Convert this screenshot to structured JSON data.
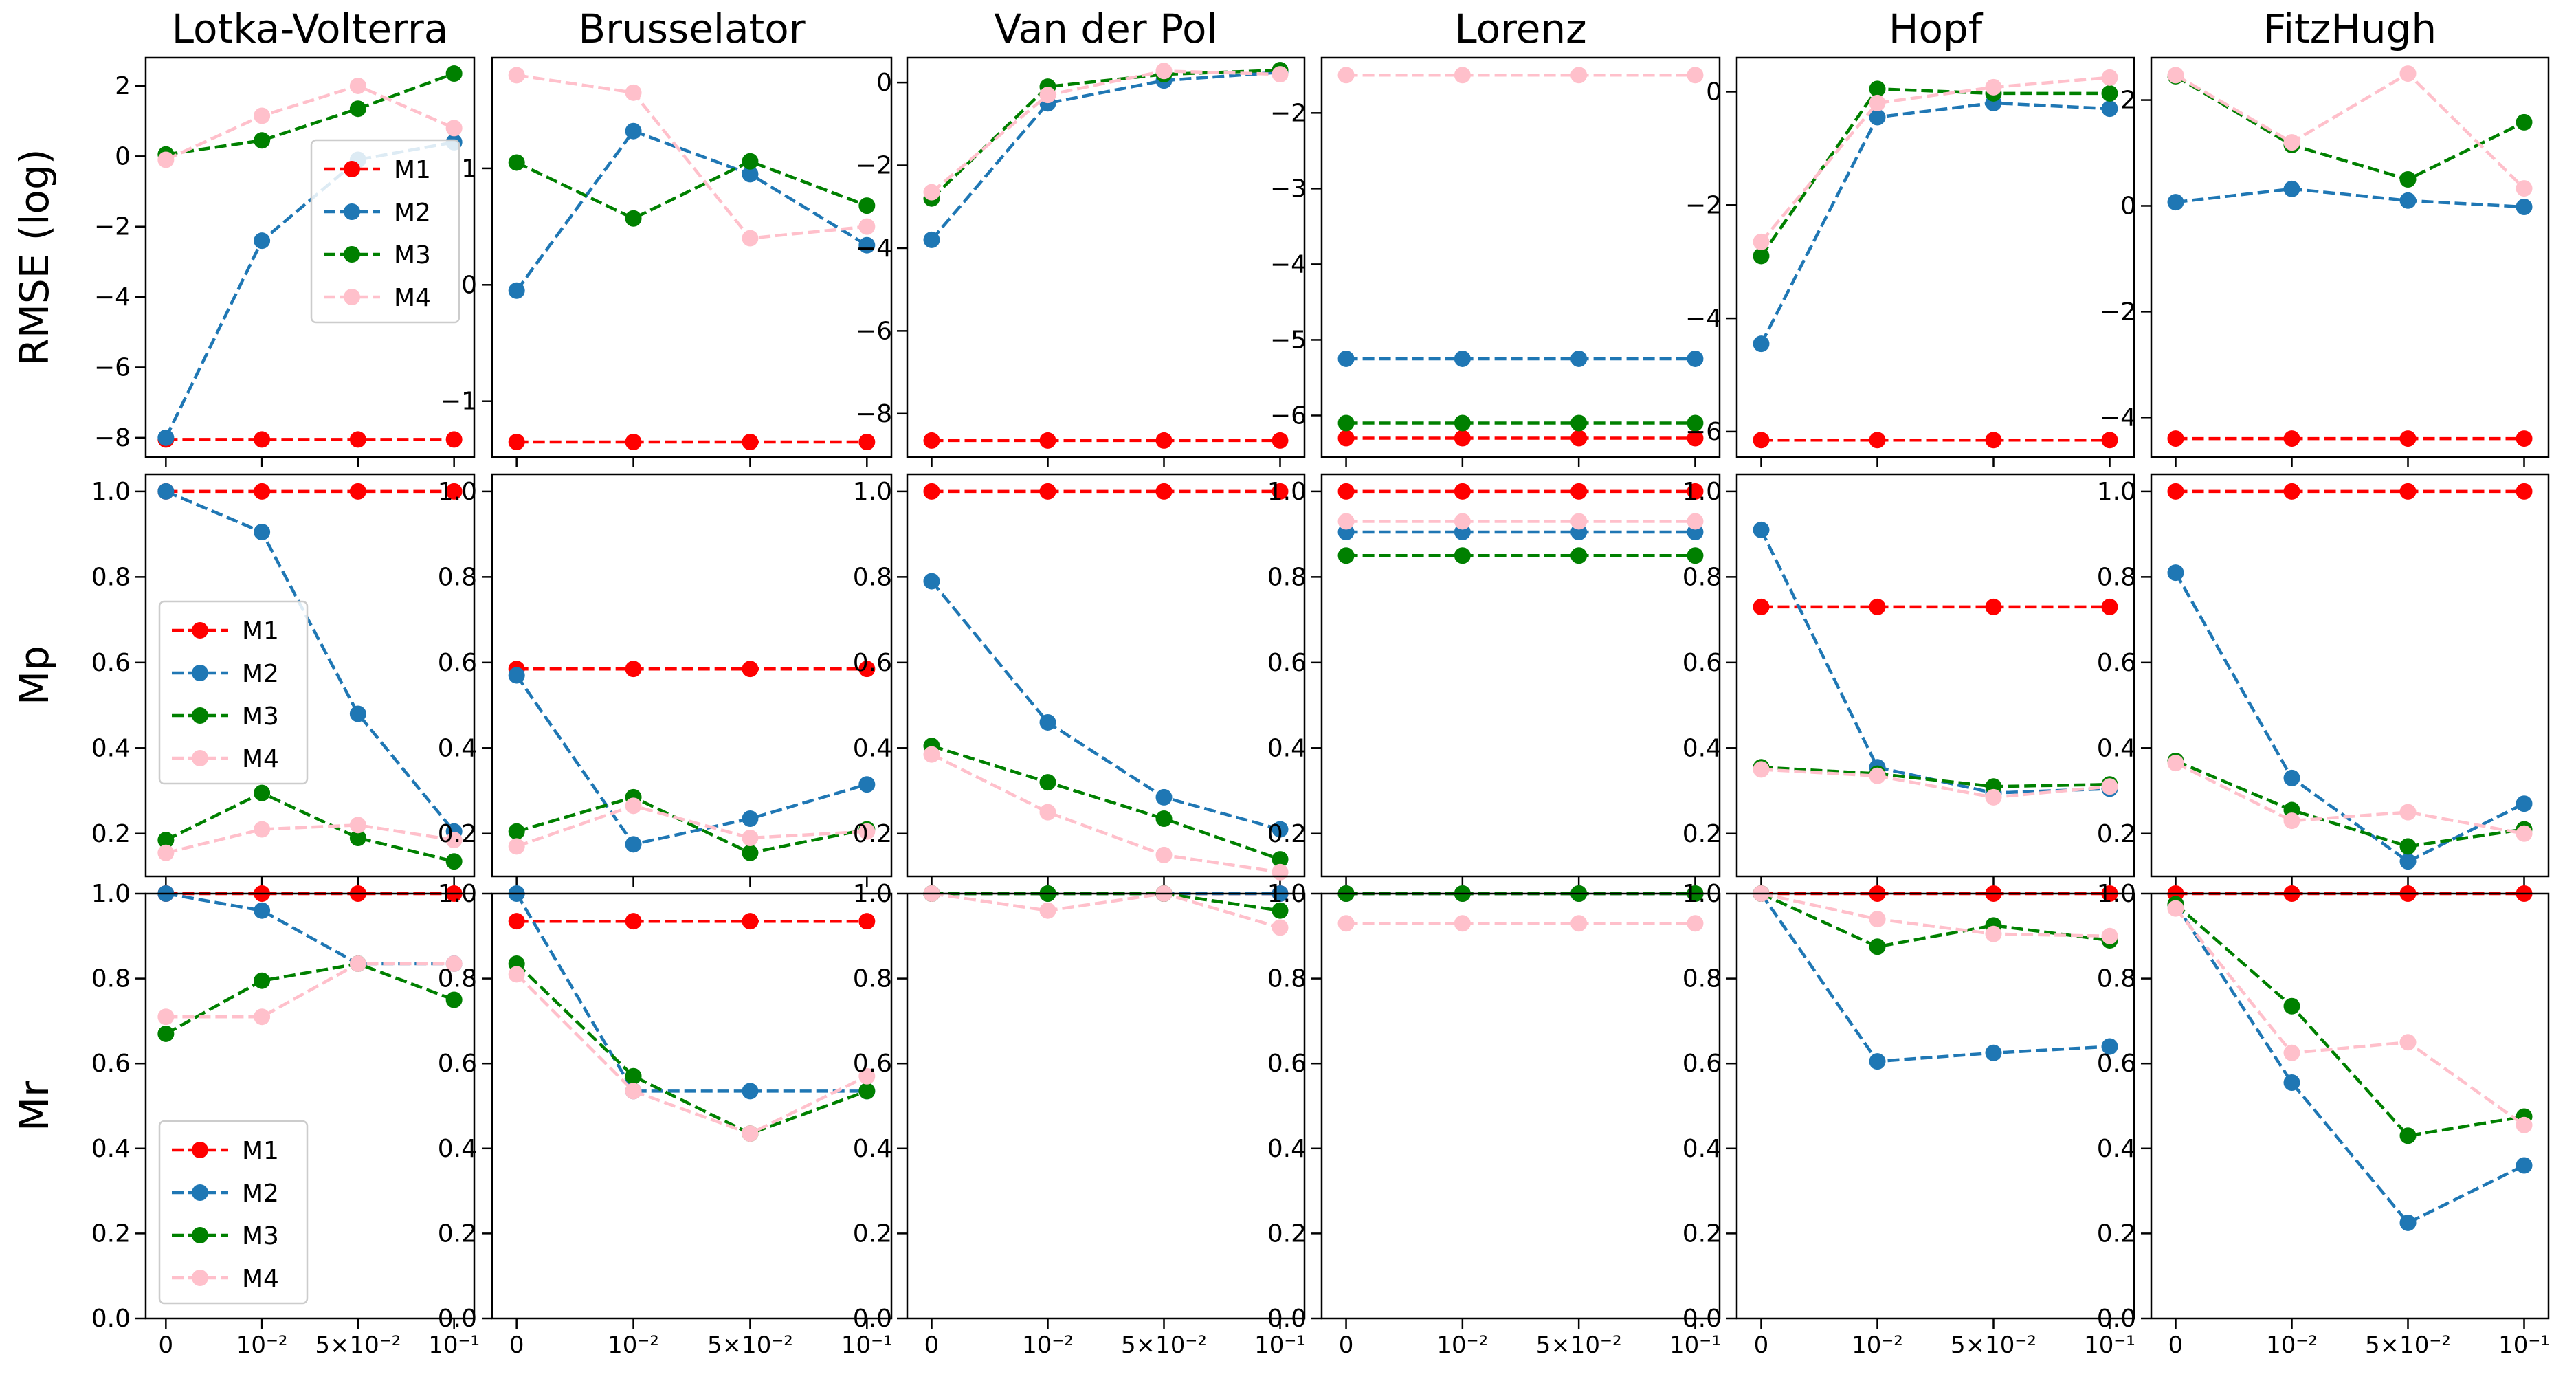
{
  "colors": {
    "M1": "#ff0000",
    "M2": "#1f77b4",
    "M3": "#008000",
    "M4": "#ffc0cb"
  },
  "x_ticks": [
    "0",
    "10⁻²",
    "5×10⁻²",
    "10⁻¹"
  ],
  "row_labels": [
    "RMSE (log)",
    "Mp",
    "Mr"
  ],
  "column_titles": [
    "Lotka-Volterra",
    "Brusselator",
    "Van der Pol",
    "Lorenz",
    "Hopf",
    "FitzHugh"
  ],
  "chart_data": [
    {
      "type": "line",
      "title": "Lotka-Volterra",
      "ylabel": "RMSE (log)",
      "categories": [
        "0",
        "10⁻²",
        "5×10⁻²",
        "10⁻¹"
      ],
      "ylim": [
        -8.55,
        2.8
      ],
      "yticks": [
        -8,
        -6,
        -4,
        -2,
        0,
        2
      ],
      "legend": "center-right",
      "series": [
        {
          "name": "M1",
          "values": [
            -8.05,
            -8.05,
            -8.05,
            -8.05
          ]
        },
        {
          "name": "M2",
          "values": [
            -8.0,
            -2.4,
            -0.1,
            0.4
          ]
        },
        {
          "name": "M3",
          "values": [
            0.05,
            0.45,
            1.35,
            2.35
          ]
        },
        {
          "name": "M4",
          "values": [
            -0.1,
            1.15,
            2.0,
            0.8
          ]
        }
      ]
    },
    {
      "type": "line",
      "title": "Brusselator",
      "ylabel": "",
      "categories": [
        "0",
        "10⁻²",
        "5×10⁻²",
        "10⁻¹"
      ],
      "ylim": [
        -1.48,
        1.95
      ],
      "yticks": [
        -1,
        0,
        1
      ],
      "legend": "none",
      "series": [
        {
          "name": "M1",
          "values": [
            -1.35,
            -1.35,
            -1.35,
            -1.35
          ]
        },
        {
          "name": "M2",
          "values": [
            -0.05,
            1.32,
            0.95,
            0.34
          ]
        },
        {
          "name": "M3",
          "values": [
            1.05,
            0.57,
            1.06,
            0.68
          ]
        },
        {
          "name": "M4",
          "values": [
            1.8,
            1.65,
            0.4,
            0.5
          ]
        }
      ]
    },
    {
      "type": "line",
      "title": "Van der Pol",
      "ylabel": "",
      "categories": [
        "0",
        "10⁻²",
        "5×10⁻²",
        "10⁻¹"
      ],
      "ylim": [
        -9.05,
        0.6
      ],
      "yticks": [
        -8,
        -6,
        -4,
        -2,
        0
      ],
      "legend": "none",
      "series": [
        {
          "name": "M1",
          "values": [
            -8.65,
            -8.65,
            -8.65,
            -8.65
          ]
        },
        {
          "name": "M2",
          "values": [
            -3.8,
            -0.5,
            0.05,
            0.25
          ]
        },
        {
          "name": "M3",
          "values": [
            -2.8,
            -0.1,
            0.2,
            0.3
          ]
        },
        {
          "name": "M4",
          "values": [
            -2.65,
            -0.3,
            0.28,
            0.2
          ]
        }
      ]
    },
    {
      "type": "line",
      "title": "Lorenz",
      "ylabel": "",
      "categories": [
        "0",
        "10⁻²",
        "5×10⁻²",
        "10⁻¹"
      ],
      "ylim": [
        -6.55,
        -1.27
      ],
      "yticks": [
        -6,
        -5,
        -4,
        -3,
        -2
      ],
      "legend": "none",
      "series": [
        {
          "name": "M1",
          "values": [
            -6.3,
            -6.3,
            -6.3,
            -6.3
          ]
        },
        {
          "name": "M2",
          "values": [
            -5.25,
            -5.25,
            -5.25,
            -5.25
          ]
        },
        {
          "name": "M3",
          "values": [
            -6.1,
            -6.1,
            -6.1,
            -6.1
          ]
        },
        {
          "name": "M4",
          "values": [
            -1.5,
            -1.5,
            -1.5,
            -1.5
          ]
        }
      ]
    },
    {
      "type": "line",
      "title": "Hopf",
      "ylabel": "",
      "categories": [
        "0",
        "10⁻²",
        "5×10⁻²",
        "10⁻¹"
      ],
      "ylim": [
        -6.45,
        0.6
      ],
      "yticks": [
        -6,
        -4,
        -2,
        0
      ],
      "legend": "none",
      "series": [
        {
          "name": "M1",
          "values": [
            -6.15,
            -6.15,
            -6.15,
            -6.15
          ]
        },
        {
          "name": "M2",
          "values": [
            -4.45,
            -0.45,
            -0.2,
            -0.3
          ]
        },
        {
          "name": "M3",
          "values": [
            -2.9,
            0.05,
            -0.03,
            -0.03
          ]
        },
        {
          "name": "M4",
          "values": [
            -2.65,
            -0.2,
            0.08,
            0.25
          ]
        }
      ]
    },
    {
      "type": "line",
      "title": "FitzHugh",
      "ylabel": "",
      "categories": [
        "0",
        "10⁻²",
        "5×10⁻²",
        "10⁻¹"
      ],
      "ylim": [
        -4.75,
        2.8
      ],
      "yticks": [
        -4,
        -2,
        0,
        2
      ],
      "legend": "none",
      "series": [
        {
          "name": "M1",
          "values": [
            -4.4,
            -4.4,
            -4.4,
            -4.4
          ]
        },
        {
          "name": "M2",
          "values": [
            0.07,
            0.32,
            0.1,
            -0.02
          ]
        },
        {
          "name": "M3",
          "values": [
            2.45,
            1.15,
            0.5,
            1.58
          ]
        },
        {
          "name": "M4",
          "values": [
            2.47,
            1.2,
            2.5,
            0.33
          ]
        }
      ]
    },
    {
      "type": "line",
      "title": "",
      "ylabel": "Mp",
      "categories": [
        "0",
        "10⁻²",
        "5×10⁻²",
        "10⁻¹"
      ],
      "ylim": [
        0.1,
        1.04
      ],
      "yticks": [
        0.2,
        0.4,
        0.6,
        0.8,
        1.0
      ],
      "legend": "center-left",
      "series": [
        {
          "name": "M1",
          "values": [
            1.0,
            1.0,
            1.0,
            1.0
          ]
        },
        {
          "name": "M2",
          "values": [
            1.0,
            0.905,
            0.48,
            0.205
          ]
        },
        {
          "name": "M3",
          "values": [
            0.185,
            0.295,
            0.19,
            0.135
          ]
        },
        {
          "name": "M4",
          "values": [
            0.155,
            0.21,
            0.22,
            0.185
          ]
        }
      ]
    },
    {
      "type": "line",
      "title": "",
      "ylabel": "",
      "categories": [
        "0",
        "10⁻²",
        "5×10⁻²",
        "10⁻¹"
      ],
      "ylim": [
        0.1,
        1.04
      ],
      "yticks": [
        0.2,
        0.4,
        0.6,
        0.8,
        1.0
      ],
      "legend": "none",
      "series": [
        {
          "name": "M1",
          "values": [
            0.585,
            0.585,
            0.585,
            0.585
          ]
        },
        {
          "name": "M2",
          "values": [
            0.57,
            0.175,
            0.235,
            0.315
          ]
        },
        {
          "name": "M3",
          "values": [
            0.205,
            0.285,
            0.155,
            0.21
          ]
        },
        {
          "name": "M4",
          "values": [
            0.17,
            0.265,
            0.19,
            0.205
          ]
        }
      ]
    },
    {
      "type": "line",
      "title": "",
      "ylabel": "",
      "categories": [
        "0",
        "10⁻²",
        "5×10⁻²",
        "10⁻¹"
      ],
      "ylim": [
        0.1,
        1.04
      ],
      "yticks": [
        0.2,
        0.4,
        0.6,
        0.8,
        1.0
      ],
      "legend": "none",
      "series": [
        {
          "name": "M1",
          "values": [
            1.0,
            1.0,
            1.0,
            1.0
          ]
        },
        {
          "name": "M2",
          "values": [
            0.79,
            0.46,
            0.285,
            0.21
          ]
        },
        {
          "name": "M3",
          "values": [
            0.405,
            0.32,
            0.235,
            0.14
          ]
        },
        {
          "name": "M4",
          "values": [
            0.385,
            0.25,
            0.15,
            0.11
          ]
        }
      ]
    },
    {
      "type": "line",
      "title": "",
      "ylabel": "",
      "categories": [
        "0",
        "10⁻²",
        "5×10⁻²",
        "10⁻¹"
      ],
      "ylim": [
        0.1,
        1.04
      ],
      "yticks": [
        0.2,
        0.4,
        0.6,
        0.8,
        1.0
      ],
      "legend": "none",
      "series": [
        {
          "name": "M1",
          "values": [
            1.0,
            1.0,
            1.0,
            1.0
          ]
        },
        {
          "name": "M2",
          "values": [
            0.905,
            0.905,
            0.905,
            0.905
          ]
        },
        {
          "name": "M3",
          "values": [
            0.85,
            0.85,
            0.85,
            0.85
          ]
        },
        {
          "name": "M4",
          "values": [
            0.93,
            0.93,
            0.93,
            0.93
          ]
        }
      ]
    },
    {
      "type": "line",
      "title": "",
      "ylabel": "",
      "categories": [
        "0",
        "10⁻²",
        "5×10⁻²",
        "10⁻¹"
      ],
      "ylim": [
        0.1,
        1.04
      ],
      "yticks": [
        0.2,
        0.4,
        0.6,
        0.8,
        1.0
      ],
      "legend": "none",
      "series": [
        {
          "name": "M1",
          "values": [
            0.73,
            0.73,
            0.73,
            0.73
          ]
        },
        {
          "name": "M2",
          "values": [
            0.91,
            0.355,
            0.295,
            0.305
          ]
        },
        {
          "name": "M3",
          "values": [
            0.355,
            0.34,
            0.31,
            0.315
          ]
        },
        {
          "name": "M4",
          "values": [
            0.35,
            0.335,
            0.285,
            0.31
          ]
        }
      ]
    },
    {
      "type": "line",
      "title": "",
      "ylabel": "",
      "categories": [
        "0",
        "10⁻²",
        "5×10⁻²",
        "10⁻¹"
      ],
      "ylim": [
        0.1,
        1.04
      ],
      "yticks": [
        0.2,
        0.4,
        0.6,
        0.8,
        1.0
      ],
      "legend": "none",
      "series": [
        {
          "name": "M1",
          "values": [
            1.0,
            1.0,
            1.0,
            1.0
          ]
        },
        {
          "name": "M2",
          "values": [
            0.81,
            0.33,
            0.135,
            0.27
          ]
        },
        {
          "name": "M3",
          "values": [
            0.37,
            0.255,
            0.17,
            0.21
          ]
        },
        {
          "name": "M4",
          "values": [
            0.365,
            0.23,
            0.25,
            0.2
          ]
        }
      ]
    },
    {
      "type": "line",
      "title": "",
      "ylabel": "Mr",
      "categories": [
        "0",
        "10⁻²",
        "5×10⁻²",
        "10⁻¹"
      ],
      "ylim": [
        0.0,
        1.0
      ],
      "yticks": [
        0.0,
        0.2,
        0.4,
        0.6,
        0.8,
        1.0
      ],
      "legend": "lower-left",
      "series": [
        {
          "name": "M1",
          "values": [
            1.0,
            1.0,
            1.0,
            1.0
          ]
        },
        {
          "name": "M2",
          "values": [
            1.0,
            0.96,
            0.835,
            0.835
          ]
        },
        {
          "name": "M3",
          "values": [
            0.67,
            0.795,
            0.835,
            0.75
          ]
        },
        {
          "name": "M4",
          "values": [
            0.71,
            0.71,
            0.835,
            0.835
          ]
        }
      ]
    },
    {
      "type": "line",
      "title": "",
      "ylabel": "",
      "categories": [
        "0",
        "10⁻²",
        "5×10⁻²",
        "10⁻¹"
      ],
      "ylim": [
        0.0,
        1.0
      ],
      "yticks": [
        0.0,
        0.2,
        0.4,
        0.6,
        0.8,
        1.0
      ],
      "legend": "none",
      "series": [
        {
          "name": "M1",
          "values": [
            0.935,
            0.935,
            0.935,
            0.935
          ]
        },
        {
          "name": "M2",
          "values": [
            1.0,
            0.535,
            0.535,
            0.535
          ]
        },
        {
          "name": "M3",
          "values": [
            0.835,
            0.57,
            0.435,
            0.535
          ]
        },
        {
          "name": "M4",
          "values": [
            0.81,
            0.535,
            0.435,
            0.57
          ]
        }
      ]
    },
    {
      "type": "line",
      "title": "",
      "ylabel": "",
      "categories": [
        "0",
        "10⁻²",
        "5×10⁻²",
        "10⁻¹"
      ],
      "ylim": [
        0.0,
        1.0
      ],
      "yticks": [
        0.0,
        0.2,
        0.4,
        0.6,
        0.8,
        1.0
      ],
      "legend": "none",
      "series": [
        {
          "name": "M1",
          "values": [
            1.0,
            1.0,
            1.0,
            1.0
          ]
        },
        {
          "name": "M2",
          "values": [
            1.0,
            1.0,
            1.0,
            1.0
          ]
        },
        {
          "name": "M3",
          "values": [
            1.0,
            1.0,
            1.0,
            0.96
          ]
        },
        {
          "name": "M4",
          "values": [
            1.0,
            0.96,
            1.0,
            0.92
          ]
        }
      ]
    },
    {
      "type": "line",
      "title": "",
      "ylabel": "",
      "categories": [
        "0",
        "10⁻²",
        "5×10⁻²",
        "10⁻¹"
      ],
      "ylim": [
        0.0,
        1.0
      ],
      "yticks": [
        0.0,
        0.2,
        0.4,
        0.6,
        0.8,
        1.0
      ],
      "legend": "none",
      "series": [
        {
          "name": "M1",
          "values": [
            1.0,
            1.0,
            1.0,
            1.0
          ]
        },
        {
          "name": "M2",
          "values": [
            1.0,
            1.0,
            1.0,
            1.0
          ]
        },
        {
          "name": "M3",
          "values": [
            1.0,
            1.0,
            1.0,
            1.0
          ]
        },
        {
          "name": "M4",
          "values": [
            0.93,
            0.93,
            0.93,
            0.93
          ]
        }
      ]
    },
    {
      "type": "line",
      "title": "",
      "ylabel": "",
      "categories": [
        "0",
        "10⁻²",
        "5×10⁻²",
        "10⁻¹"
      ],
      "ylim": [
        0.0,
        1.0
      ],
      "yticks": [
        0.0,
        0.2,
        0.4,
        0.6,
        0.8,
        1.0
      ],
      "legend": "none",
      "series": [
        {
          "name": "M1",
          "values": [
            1.0,
            1.0,
            1.0,
            1.0
          ]
        },
        {
          "name": "M2",
          "values": [
            1.0,
            0.605,
            0.625,
            0.64
          ]
        },
        {
          "name": "M3",
          "values": [
            1.0,
            0.875,
            0.925,
            0.89
          ]
        },
        {
          "name": "M4",
          "values": [
            1.0,
            0.94,
            0.905,
            0.9
          ]
        }
      ]
    },
    {
      "type": "line",
      "title": "",
      "ylabel": "",
      "categories": [
        "0",
        "10⁻²",
        "5×10⁻²",
        "10⁻¹"
      ],
      "ylim": [
        0.0,
        1.0
      ],
      "yticks": [
        0.0,
        0.2,
        0.4,
        0.6,
        0.8,
        1.0
      ],
      "legend": "none",
      "series": [
        {
          "name": "M1",
          "values": [
            1.0,
            1.0,
            1.0,
            1.0
          ]
        },
        {
          "name": "M2",
          "values": [
            0.975,
            0.555,
            0.225,
            0.36
          ]
        },
        {
          "name": "M3",
          "values": [
            0.975,
            0.735,
            0.43,
            0.475
          ]
        },
        {
          "name": "M4",
          "values": [
            0.965,
            0.625,
            0.65,
            0.455
          ]
        }
      ]
    }
  ]
}
